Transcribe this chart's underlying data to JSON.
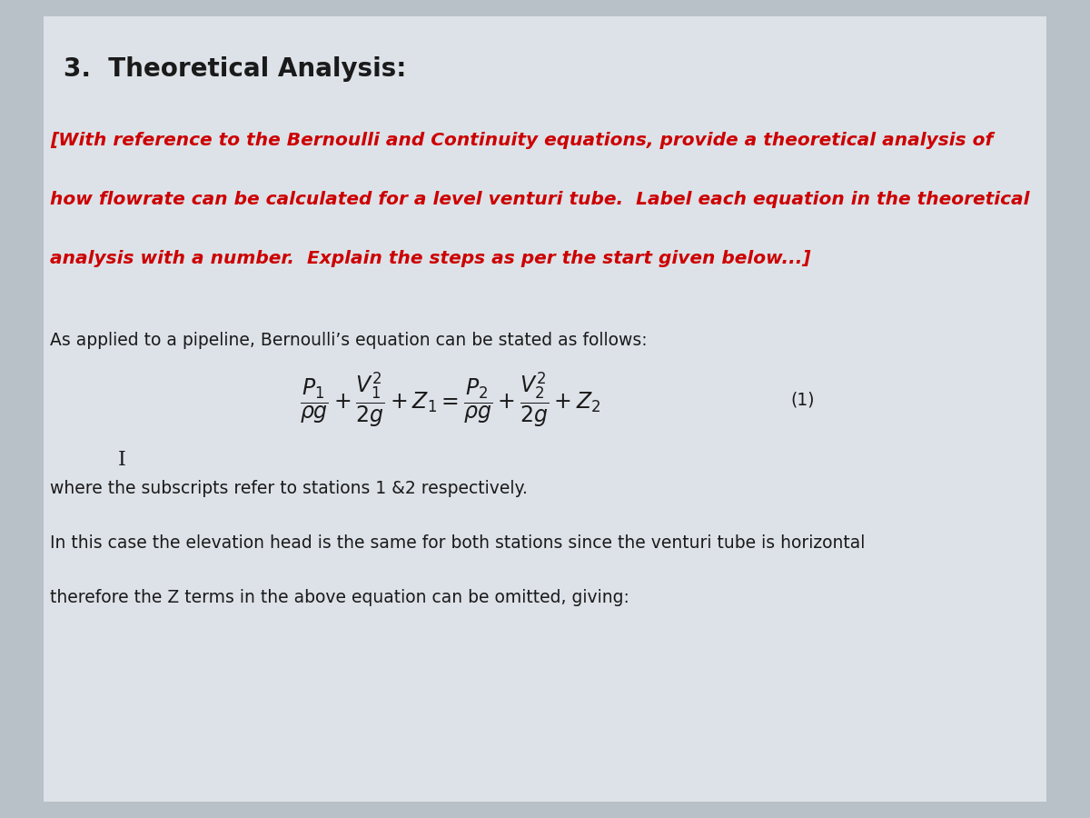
{
  "background_color": "#b8c0c8",
  "page_color": "#dde2e8",
  "title": "3.  Theoretical Analysis:",
  "title_fontsize": 20,
  "red_lines": [
    "[With reference to the Bernoulli and Continuity equations, provide a theoretical analysis of",
    "how flowrate can be calculated for a level venturi tube.  Label each equation in the theoretical",
    "analysis with a number.  Explain the steps as per the start given below...]"
  ],
  "red_fontsize": 14.5,
  "black_fontsize": 13.5,
  "eq_fontsize": 17,
  "eq_label": "(1)",
  "where_line": "where the subscripts refer to stations 1 &2 respectively.",
  "in_this_line1": "In this case the elevation head is the same for both stations since the venturi tube is horizontal",
  "in_this_line2": "therefore the Z terms in the above equation can be omitted, giving:",
  "black_line1": "As applied to a pipeline, Bernoulli’s equation can be stated as follows:"
}
